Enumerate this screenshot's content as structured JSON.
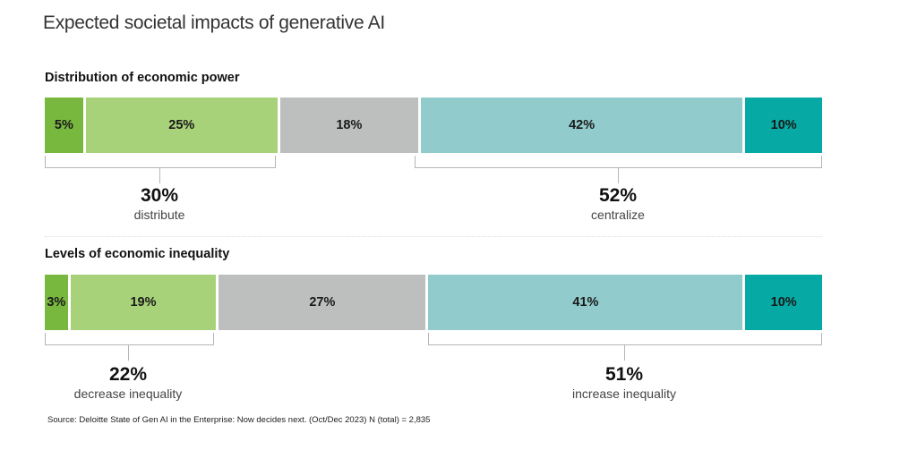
{
  "title": "Expected societal impacts of generative AI",
  "colors": {
    "dark_green": "#79b83e",
    "light_green": "#a8d27a",
    "gray": "#bdbebe",
    "light_teal": "#91cbcb",
    "teal": "#06a9a4"
  },
  "chart_data": [
    {
      "type": "bar",
      "stacked": true,
      "orientation": "horizontal",
      "title": "Distribution of economic power",
      "segments": [
        {
          "label": "5%",
          "value": 5,
          "color": "#79b83e"
        },
        {
          "label": "25%",
          "value": 25,
          "color": "#a8d27a"
        },
        {
          "label": "18%",
          "value": 18,
          "color": "#bdbebe"
        },
        {
          "label": "42%",
          "value": 42,
          "color": "#91cbcb"
        },
        {
          "label": "10%",
          "value": 10,
          "color": "#06a9a4"
        }
      ],
      "groups": [
        {
          "value": "30%",
          "text": "distribute"
        },
        {
          "value": "52%",
          "text": "centralize"
        }
      ]
    },
    {
      "type": "bar",
      "stacked": true,
      "orientation": "horizontal",
      "title": "Levels of economic inequality",
      "segments": [
        {
          "label": "3%",
          "value": 3,
          "color": "#79b83e"
        },
        {
          "label": "19%",
          "value": 19,
          "color": "#a8d27a"
        },
        {
          "label": "27%",
          "value": 27,
          "color": "#bdbebe"
        },
        {
          "label": "41%",
          "value": 41,
          "color": "#91cbcb"
        },
        {
          "label": "10%",
          "value": 10,
          "color": "#06a9a4"
        }
      ],
      "groups": [
        {
          "value": "22%",
          "text": "decrease inequality"
        },
        {
          "value": "51%",
          "text": "increase inequality"
        }
      ]
    }
  ],
  "source": "Source: Deloitte State of Gen AI in the Enterprise: Now decides next. (Oct/Dec 2023) N (total) = 2,835"
}
